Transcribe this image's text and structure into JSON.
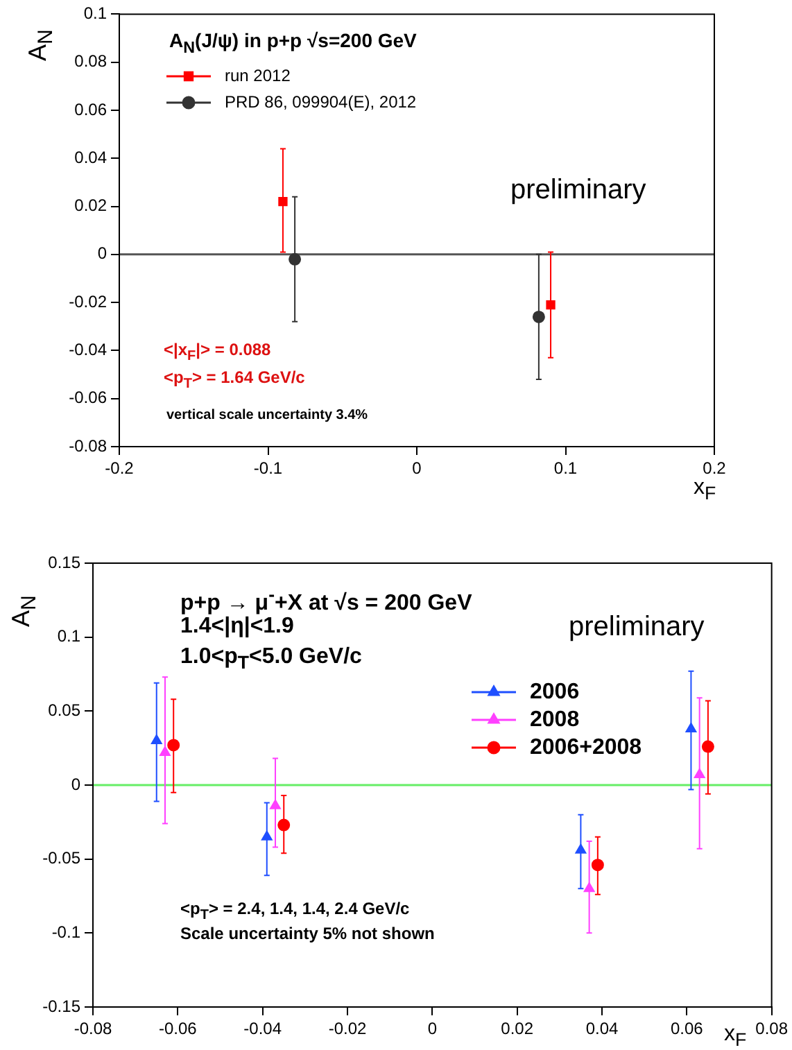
{
  "chart_data": [
    {
      "type": "scatter",
      "title": "A$_{N}$(J/ψ) in p+p √s=200 GeV",
      "xlabel": "x$_{F}$",
      "ylabel": "A$_{N}$",
      "xlim": [
        -0.2,
        0.2
      ],
      "xticks": [
        -0.2,
        -0.1,
        0,
        0.1,
        0.2
      ],
      "ylim": [
        -0.08,
        0.1
      ],
      "yticks": [
        -0.08,
        -0.06,
        -0.04,
        -0.02,
        0,
        0.02,
        0.04,
        0.06,
        0.08,
        0.1
      ],
      "series": [
        {
          "name": "run 2012",
          "color": "#ff0000",
          "marker": "square",
          "x": [
            -0.09,
            0.09
          ],
          "values": [
            0.022,
            -0.021
          ],
          "errors": [
            [
              0.001,
              0.044
            ],
            [
              -0.043,
              0.001
            ]
          ]
        },
        {
          "name": "PRD 86, 099904(E), 2012",
          "color": "#333333",
          "marker": "circle",
          "x": [
            -0.082,
            0.082
          ],
          "values": [
            -0.002,
            -0.026
          ],
          "errors": [
            [
              -0.028,
              0.024
            ],
            [
              -0.052,
              0.0
            ]
          ]
        }
      ],
      "ref_lines": [
        {
          "axis": "y",
          "value": 0,
          "color": "#555555"
        }
      ],
      "annotations": [
        "<|x$_{F}$|> = 0.088",
        "<p$_{T}$> = 1.64 GeV/c",
        "vertical scale uncertainty 3.4%",
        "preliminary"
      ],
      "legend": "top left",
      "grid": false
    },
    {
      "type": "scatter",
      "title": "p+p → μ$^{-}$+X at √s = 200 GeV",
      "xlabel": "x$_{F}$",
      "ylabel": "A$_{N}$",
      "xlim": [
        -0.08,
        0.08
      ],
      "xticks": [
        -0.08,
        -0.06,
        -0.04,
        -0.02,
        0,
        0.02,
        0.04,
        0.06,
        0.08
      ],
      "ylim": [
        -0.15,
        0.15
      ],
      "yticks": [
        -0.15,
        -0.1,
        -0.05,
        0,
        0.05,
        0.1,
        0.15
      ],
      "series": [
        {
          "name": "2006",
          "color": "#1f4fff",
          "marker": "triangle",
          "x": [
            -0.065,
            -0.039,
            0.035,
            0.061
          ],
          "values": [
            0.03,
            -0.035,
            -0.044,
            0.038
          ],
          "errors": [
            [
              -0.011,
              0.069
            ],
            [
              -0.061,
              -0.012
            ],
            [
              -0.07,
              -0.02
            ],
            [
              -0.003,
              0.077
            ]
          ]
        },
        {
          "name": "2008",
          "color": "#ff40ff",
          "marker": "triangle",
          "x": [
            -0.063,
            -0.037,
            0.037,
            0.063
          ],
          "values": [
            0.022,
            -0.014,
            -0.07,
            0.007
          ],
          "errors": [
            [
              -0.026,
              0.073
            ],
            [
              -0.042,
              0.018
            ],
            [
              -0.1,
              -0.038
            ],
            [
              -0.043,
              0.059
            ]
          ]
        },
        {
          "name": "2006+2008",
          "color": "#ff0000",
          "marker": "circle",
          "x": [
            -0.061,
            -0.035,
            0.039,
            0.065
          ],
          "values": [
            0.027,
            -0.027,
            -0.054,
            0.026
          ],
          "errors": [
            [
              -0.005,
              0.058
            ],
            [
              -0.046,
              -0.007
            ],
            [
              -0.074,
              -0.035
            ],
            [
              -0.006,
              0.057
            ]
          ]
        }
      ],
      "ref_lines": [
        {
          "axis": "y",
          "value": 0,
          "color": "#66ee66"
        }
      ],
      "annotations": [
        "1.4<|η|<1.9",
        "1.0<p$_{T}$<5.0 GeV/c",
        "<p$_{T}$> = 2.4, 1.4, 1.4, 2.4 GeV/c",
        "Scale uncertainty 5% not shown",
        "preliminary"
      ],
      "legend": "right",
      "grid": false
    }
  ]
}
